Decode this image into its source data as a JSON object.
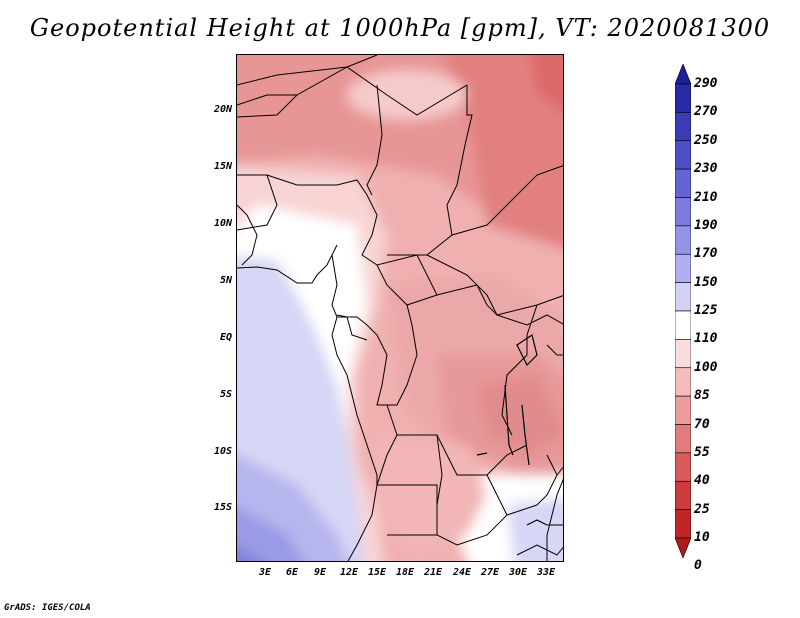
{
  "title": "Geopotential Height at 1000hPa [gpm], VT: 2020081300",
  "credit": "GrADS: IGES/COLA",
  "axes": {
    "lat_ticks": [
      "20N",
      "15N",
      "10N",
      "5N",
      "EQ",
      "5S",
      "10S",
      "15S"
    ],
    "lon_ticks": [
      "3E",
      "6E",
      "9E",
      "12E",
      "15E",
      "18E",
      "21E",
      "24E",
      "27E",
      "30E",
      "33E"
    ]
  },
  "colorbar": {
    "labels": [
      "290",
      "270",
      "250",
      "230",
      "210",
      "190",
      "170",
      "150",
      "125",
      "110",
      "100",
      "85",
      "70",
      "55",
      "40",
      "25",
      "10",
      "0"
    ],
    "colors": [
      "#1e1e96",
      "#2a2aa6",
      "#3b3bb6",
      "#4e4ec6",
      "#6464d4",
      "#7c7cde",
      "#9494e6",
      "#b0b0ef",
      "#d2d2f6",
      "#ffffff",
      "#fadcdc",
      "#f4bcbc",
      "#ec9c9c",
      "#e27c7c",
      "#d85c5c",
      "#cc3c3c",
      "#c02626",
      "#b01a1a"
    ]
  },
  "map": {
    "region": "Central Africa",
    "lon_range": [
      0,
      35
    ],
    "lat_range": [
      -20,
      24
    ]
  }
}
